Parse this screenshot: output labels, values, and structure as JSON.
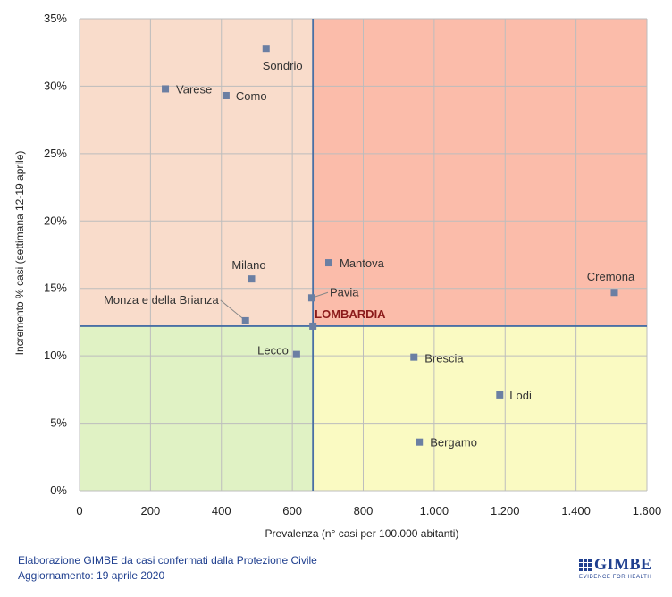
{
  "chart_data": {
    "type": "scatter",
    "xlabel": "Prevalenza  (n° casi per 100.000 abitanti)",
    "ylabel": "Incremento % casi (settimana 12-19 aprile)",
    "xlim": [
      0,
      1600
    ],
    "ylim": [
      0,
      35
    ],
    "x_ticks": [
      "0",
      "200",
      "400",
      "600",
      "800",
      "1.000",
      "1.200",
      "1.400",
      "1.600"
    ],
    "y_ticks": [
      "0%",
      "5%",
      "10%",
      "15%",
      "20%",
      "25%",
      "30%",
      "35%"
    ],
    "grid": true,
    "reference_lines": {
      "x": 658,
      "y": 12.2
    },
    "quadrant_colors": {
      "top_left": "#f9dccb",
      "top_right": "#fbbcaa",
      "bottom_left": "#e0f2c4",
      "bottom_right": "#fafac2"
    },
    "marker_color": "#6b7fa3",
    "line_color": "#4a6fa5",
    "points": [
      {
        "label": "Sondrio",
        "x": 526,
        "y": 32.8
      },
      {
        "label": "Varese",
        "x": 242,
        "y": 29.8
      },
      {
        "label": "Como",
        "x": 413,
        "y": 29.3
      },
      {
        "label": "Milano",
        "x": 485,
        "y": 15.7
      },
      {
        "label": "Mantova",
        "x": 703,
        "y": 16.9
      },
      {
        "label": "Pavia",
        "x": 655,
        "y": 14.3
      },
      {
        "label": "Monza e della Brianza",
        "x": 468,
        "y": 12.6
      },
      {
        "label": "LOMBARDIA",
        "x": 658,
        "y": 12.2
      },
      {
        "label": "Cremona",
        "x": 1508,
        "y": 14.7
      },
      {
        "label": "Lecco",
        "x": 612,
        "y": 10.1
      },
      {
        "label": "Brescia",
        "x": 943,
        "y": 9.9
      },
      {
        "label": "Lodi",
        "x": 1185,
        "y": 7.1
      },
      {
        "label": "Bergamo",
        "x": 958,
        "y": 3.6
      }
    ]
  },
  "footer": {
    "line1": "Elaborazione GIMBE da casi confermati dalla Protezione Civile",
    "line2": "Aggiornamento: 19 aprile 2020"
  },
  "logo": {
    "name": "GIMBE",
    "tagline": "EVIDENCE FOR HEALTH"
  }
}
